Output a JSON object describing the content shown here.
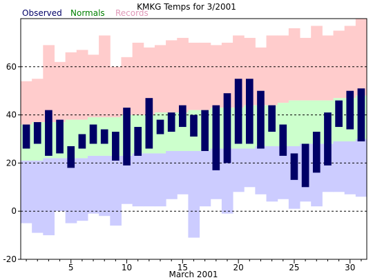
{
  "chart_data": {
    "type": "bar",
    "title": "KMKG Temps for 3/2001",
    "xlabel": "March 2001",
    "ylabel": "",
    "xlim": [
      0.5,
      31.5
    ],
    "ylim": [
      -20,
      80
    ],
    "grid": "dashed horizontal",
    "x_ticks": [
      5,
      10,
      15,
      20,
      25,
      30
    ],
    "y_ticks": [
      -20,
      0,
      20,
      40,
      60
    ],
    "legend": {
      "placement": "top-left",
      "items": [
        {
          "label": "Observed",
          "color": "#000066"
        },
        {
          "label": "Normals",
          "color": "#008000"
        },
        {
          "label": "Records",
          "color": "#e098b8"
        }
      ]
    },
    "colors": {
      "observed": "#000066",
      "normals": "#ccffcc",
      "record_high_band": "#ffcccc",
      "record_low_band": "#ccccff"
    },
    "days": [
      1,
      2,
      3,
      4,
      5,
      6,
      7,
      8,
      9,
      10,
      11,
      12,
      13,
      14,
      15,
      16,
      17,
      18,
      19,
      20,
      21,
      22,
      23,
      24,
      25,
      26,
      27,
      28,
      29,
      30,
      31
    ],
    "series": [
      {
        "name": "Observed",
        "low": [
          26,
          28,
          23,
          24,
          18,
          26,
          28,
          28,
          21,
          19,
          23,
          26,
          32,
          33,
          35,
          31,
          25,
          17,
          20,
          28,
          28,
          26,
          33,
          23,
          13,
          10,
          16,
          19,
          35,
          34,
          29
        ],
        "high": [
          36,
          37,
          42,
          38,
          27,
          32,
          36,
          34,
          33,
          43,
          35,
          47,
          38,
          41,
          44,
          40,
          42,
          44,
          49,
          55,
          55,
          50,
          44,
          36,
          24,
          28,
          33,
          41,
          46,
          50,
          51
        ]
      },
      {
        "name": "Normals",
        "low": [
          21,
          21,
          22,
          22,
          22,
          22,
          23,
          23,
          23,
          23,
          24,
          24,
          24,
          25,
          25,
          25,
          25,
          26,
          26,
          26,
          26,
          27,
          27,
          27,
          27,
          28,
          28,
          28,
          29,
          29,
          30
        ],
        "high": [
          36,
          37,
          37,
          37,
          38,
          38,
          39,
          39,
          39,
          40,
          40,
          40,
          41,
          41,
          41,
          42,
          42,
          43,
          43,
          43,
          44,
          44,
          44,
          45,
          46,
          46,
          46,
          46,
          47,
          47,
          48
        ]
      },
      {
        "name": "Records",
        "low": [
          -5,
          -9,
          -10,
          0,
          -5,
          -4,
          -1,
          -2,
          -6,
          3,
          2,
          2,
          2,
          5,
          7,
          -11,
          2,
          5,
          -1,
          8,
          10,
          7,
          4,
          5,
          1,
          4,
          2,
          8,
          8,
          7,
          6
        ],
        "high": [
          54,
          55,
          69,
          62,
          66,
          67,
          65,
          73,
          60,
          64,
          70,
          68,
          69,
          71,
          72,
          70,
          70,
          69,
          70,
          73,
          72,
          68,
          73,
          73,
          76,
          72,
          77,
          73,
          75,
          77,
          80
        ]
      }
    ]
  }
}
